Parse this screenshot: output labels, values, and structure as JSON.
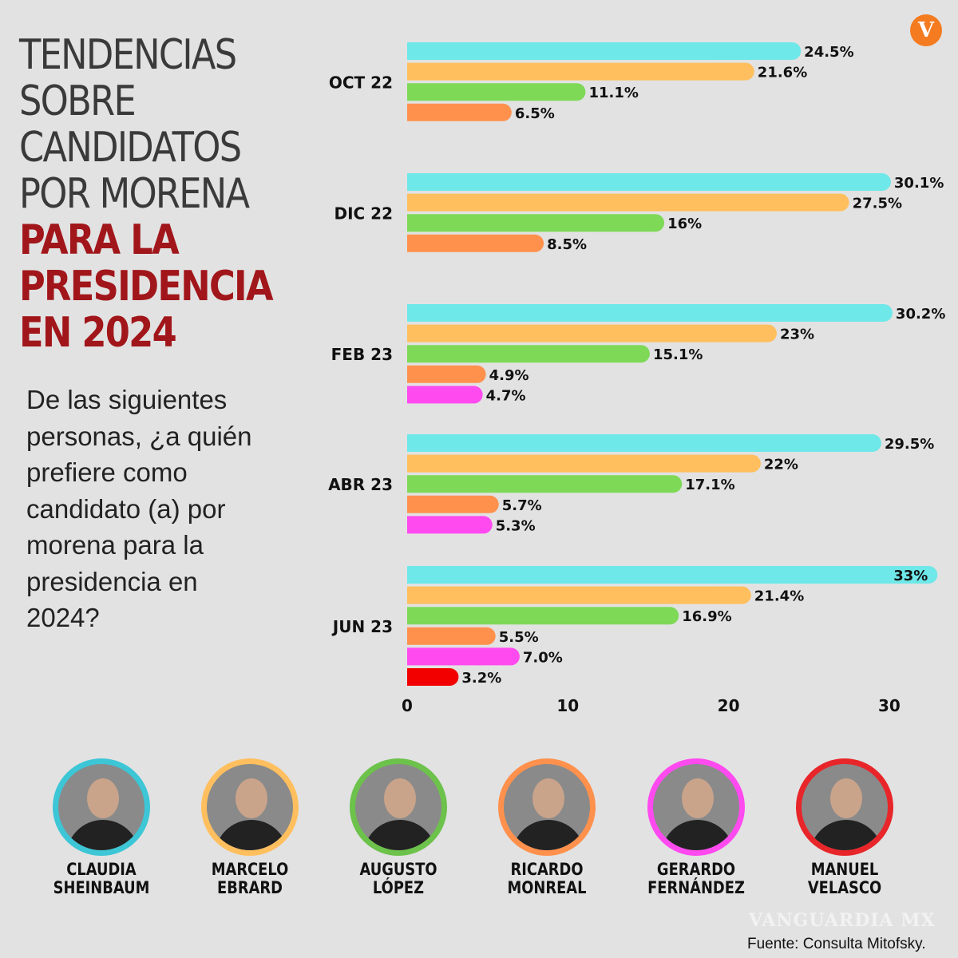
{
  "title": {
    "lines": [
      "TENDENCIAS",
      "SOBRE",
      "CANDIDATOS",
      "POR MORENA"
    ],
    "highlight_lines": [
      "PARA LA",
      "PRESIDENCIA",
      "EN 2024"
    ]
  },
  "question": "De las siguientes personas, ¿a quién prefiere como candidato (a) por morena para la presidencia en 2024?",
  "logo": "V",
  "chart_data": {
    "type": "bar",
    "orientation": "horizontal",
    "categories": [
      "OCT 22",
      "DIC 22",
      "FEB 23",
      "ABR 23",
      "JUN 23"
    ],
    "xlim": [
      0,
      33
    ],
    "xticks": [
      0,
      10,
      20,
      30
    ],
    "grid": false,
    "series": [
      {
        "name": "CLAUDIA SHEINBAUM",
        "color": "#6ee8e8",
        "values": [
          24.5,
          30.1,
          30.2,
          29.5,
          33
        ],
        "labels": [
          "24.5%",
          "30.1%",
          "30.2%",
          "29.5%",
          "33%"
        ]
      },
      {
        "name": "MARCELO EBRARD",
        "color": "#ffbf5e",
        "values": [
          21.6,
          27.5,
          23,
          22,
          21.4
        ],
        "labels": [
          "21.6%",
          "27.5%",
          "23%",
          "22%",
          "21.4%"
        ]
      },
      {
        "name": "AUGUSTO LÓPEZ",
        "color": "#7ed957",
        "values": [
          11.1,
          16,
          15.1,
          17.1,
          16.9
        ],
        "labels": [
          "11.1%",
          "16%",
          "15.1%",
          "17.1%",
          "16.9%"
        ]
      },
      {
        "name": "RICARDO MONREAL",
        "color": "#ff914d",
        "values": [
          6.5,
          8.5,
          4.9,
          5.7,
          5.5
        ],
        "labels": [
          "6.5%",
          "8.5%",
          "4.9%",
          "5.7%",
          "5.5%"
        ]
      },
      {
        "name": "GERARDO FERNÁNDEZ",
        "color": "#ff4af0",
        "values": [
          null,
          null,
          4.7,
          5.3,
          7.0
        ],
        "labels": [
          null,
          null,
          "4.7%",
          "5.3%",
          "7.0%"
        ]
      },
      {
        "name": "MANUEL VELASCO",
        "color": "#f20000",
        "values": [
          null,
          null,
          null,
          null,
          3.2
        ],
        "labels": [
          null,
          null,
          null,
          null,
          "3.2%"
        ]
      }
    ]
  },
  "candidates": [
    {
      "first": "CLAUDIA",
      "last": "SHEINBAUM",
      "color": "#3cc6d6"
    },
    {
      "first": "MARCELO",
      "last": "EBRARD",
      "color": "#ffbf5e"
    },
    {
      "first": "AUGUSTO",
      "last": "LÓPEZ",
      "color": "#6cc24a"
    },
    {
      "first": "RICARDO",
      "last": "MONREAL",
      "color": "#ff914d"
    },
    {
      "first": "GERARDO",
      "last": "FERNÁNDEZ",
      "color": "#ff4af0"
    },
    {
      "first": "MANUEL",
      "last": "VELASCO",
      "color": "#e8262a"
    }
  ],
  "watermark": "VANGUARDIA MX",
  "source": "Fuente: Consulta Mitofsky."
}
